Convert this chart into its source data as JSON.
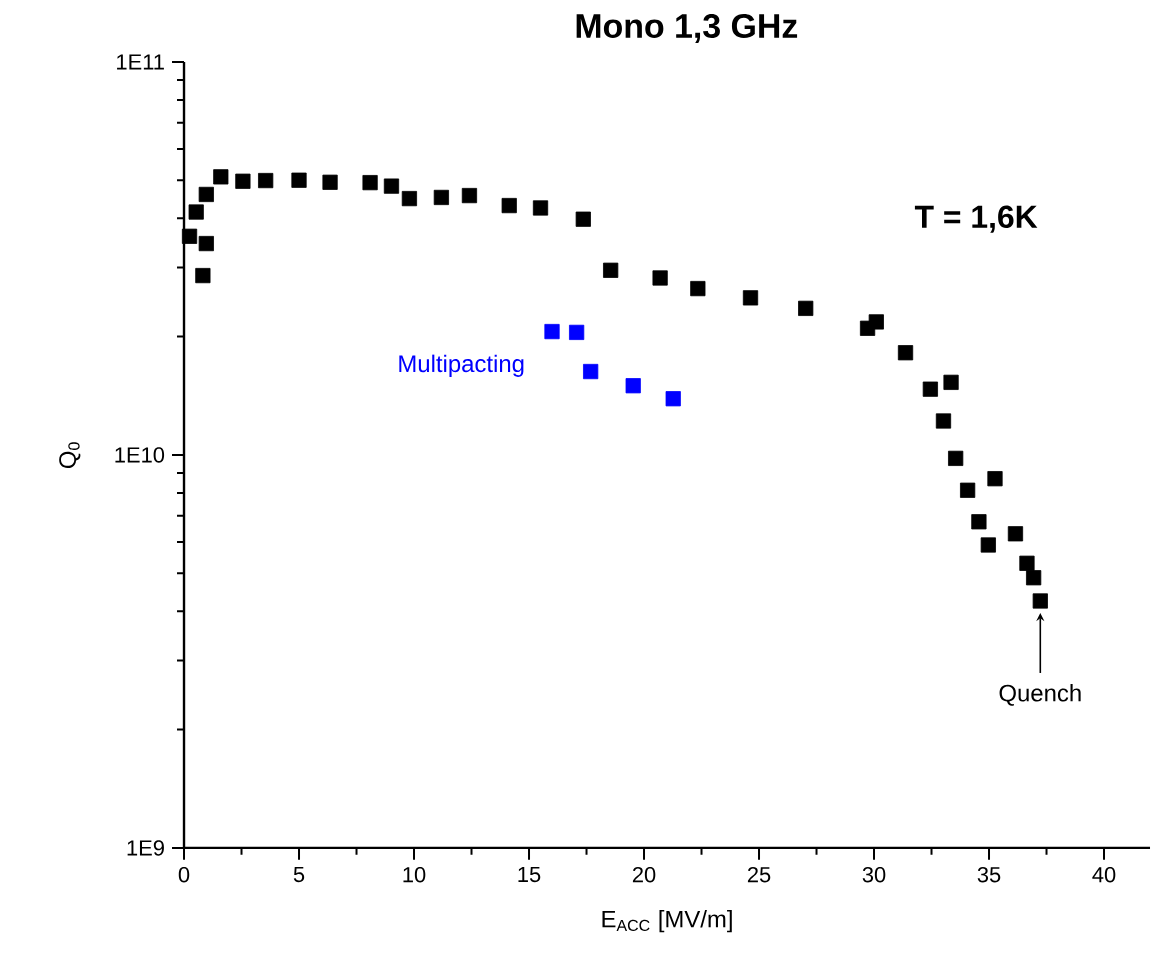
{
  "chart_data": {
    "type": "scatter",
    "title": "Mono 1,3 GHz",
    "xlabel": "E$_{ACC}$ [MV/m]",
    "ylabel": "Q$_{0}$",
    "annotations": [
      "T = 1,6K",
      {
        "text": "Quench",
        "x": 37.23,
        "y": 4250000000.0
      }
    ],
    "log": "y",
    "marker": "square",
    "grid": false,
    "legend": false,
    "xlim": [
      0,
      42
    ],
    "ylim": [
      1000000000.0,
      100000000000.0
    ],
    "xticks": [
      0,
      5,
      10,
      15,
      20,
      25,
      30,
      35,
      40
    ],
    "yticks": [
      {
        "value": 1000000000.0,
        "label": "1E9"
      },
      {
        "value": 10000000000.0,
        "label": "1E10"
      },
      {
        "value": 100000000000.0,
        "label": "1E11"
      }
    ],
    "series": [
      {
        "color": "#000000",
        "x": [
          0.24,
          0.53,
          0.97,
          0.82,
          0.97,
          1.6,
          2.56,
          3.55,
          5.0,
          6.35,
          8.09,
          9.02,
          9.8,
          11.19,
          12.41,
          14.14,
          15.5,
          17.36,
          18.55,
          20.7,
          22.34,
          24.63,
          27.03,
          29.72,
          30.1,
          31.37,
          32.45,
          33.35,
          33.02,
          33.55,
          34.07,
          35.26,
          34.56,
          34.97,
          36.15,
          36.65,
          36.94,
          37.23
        ],
        "values": [
          36000000000.0,
          41500000000.0,
          34500000000.0,
          28600000000.0,
          46000000000.0,
          51000000000.0,
          49700000000.0,
          49900000000.0,
          50000000000.0,
          49400000000.0,
          49300000000.0,
          48300000000.0,
          44900000000.0,
          45200000000.0,
          45700000000.0,
          43100000000.0,
          42500000000.0,
          39800000000.0,
          29500000000.0,
          28200000000.0,
          26500000000.0,
          25100000000.0,
          23600000000.0,
          21000000000.0,
          21800000000.0,
          18200000000.0,
          14700000000.0,
          15300000000.0,
          12200000000.0,
          9800000000.0,
          8130000000.0,
          8700000000.0,
          6760000000.0,
          5900000000.0,
          6300000000.0,
          5300000000.0,
          4870000000.0,
          4250000000.0
        ]
      },
      {
        "name": "Multipacting",
        "color": "#0000ff",
        "x": [
          16.0,
          17.07,
          17.68,
          19.53,
          21.27
        ],
        "values": [
          20600000000.0,
          20500000000.0,
          16300000000.0,
          15000000000.0,
          13900000000.0
        ]
      }
    ]
  }
}
